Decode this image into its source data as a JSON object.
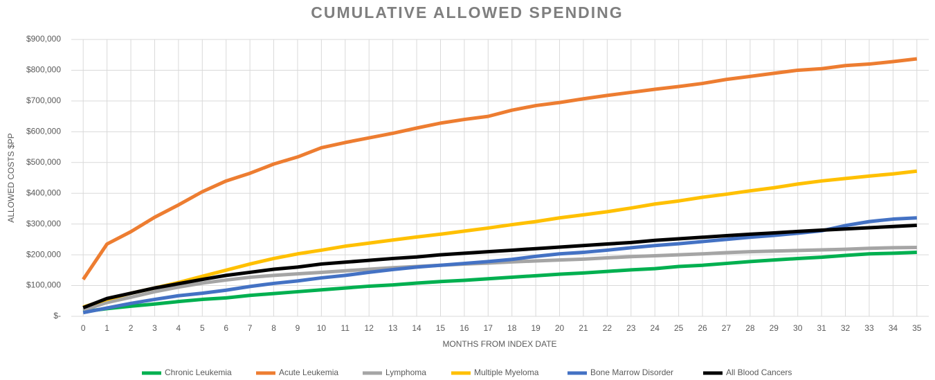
{
  "chart_data": {
    "type": "line",
    "title": "CUMULATIVE ALLOWED SPENDING",
    "x_label": "MONTHS FROM INDEX DATE",
    "y_label": "ALLOWED COSTS $PP",
    "categories": [
      "0",
      "1",
      "2",
      "3",
      "4",
      "5",
      "6",
      "7",
      "8",
      "9",
      "10",
      "11",
      "12",
      "13",
      "14",
      "15",
      "16",
      "17",
      "18",
      "19",
      "20",
      "21",
      "22",
      "23",
      "24",
      "25",
      "26",
      "27",
      "28",
      "29",
      "30",
      "31",
      "32",
      "33",
      "34",
      "35"
    ],
    "ylim": [
      0,
      900000
    ],
    "yticks": [
      {
        "value": 0,
        "label": "$-"
      },
      {
        "value": 100000,
        "label": "$100,000"
      },
      {
        "value": 200000,
        "label": "$200,000"
      },
      {
        "value": 300000,
        "label": "$300,000"
      },
      {
        "value": 400000,
        "label": "$400,000"
      },
      {
        "value": 500000,
        "label": "$500,000"
      },
      {
        "value": 600000,
        "label": "$600,000"
      },
      {
        "value": 700000,
        "label": "$700,000"
      },
      {
        "value": 800000,
        "label": "$800,000"
      },
      {
        "value": 900000,
        "label": "$900,000"
      }
    ],
    "grid": true,
    "legend": "bottom",
    "series": [
      {
        "name": "Chronic Leukemia",
        "color": "#00b050",
        "values": [
          15000,
          25000,
          33000,
          40000,
          48000,
          55000,
          60000,
          68000,
          74000,
          80000,
          86000,
          92000,
          98000,
          102000,
          108000,
          113000,
          117000,
          122000,
          127000,
          132000,
          137000,
          141000,
          146000,
          151000,
          155000,
          162000,
          166000,
          172000,
          178000,
          183000,
          188000,
          192000,
          198000,
          203000,
          205000,
          208000
        ]
      },
      {
        "name": "Acute Leukemia",
        "color": "#ed7d31",
        "values": [
          120000,
          235000,
          275000,
          322000,
          362000,
          405000,
          440000,
          465000,
          495000,
          518000,
          548000,
          565000,
          580000,
          595000,
          612000,
          628000,
          640000,
          650000,
          670000,
          685000,
          695000,
          707000,
          718000,
          728000,
          738000,
          747000,
          757000,
          770000,
          780000,
          790000,
          800000,
          805000,
          815000,
          820000,
          828000,
          837000
        ]
      },
      {
        "name": "Lymphoma",
        "color": "#a5a5a5",
        "values": [
          20000,
          45000,
          62000,
          80000,
          95000,
          108000,
          118000,
          127000,
          133000,
          138000,
          143000,
          148000,
          153000,
          158000,
          162000,
          166000,
          170000,
          173000,
          177000,
          180000,
          183000,
          186000,
          190000,
          194000,
          197000,
          200000,
          203000,
          207000,
          210000,
          212000,
          214000,
          216000,
          218000,
          221000,
          223000,
          224000
        ]
      },
      {
        "name": "Multiple Myeloma",
        "color": "#ffc000",
        "values": [
          30000,
          55000,
          75000,
          92000,
          110000,
          130000,
          150000,
          170000,
          188000,
          203000,
          215000,
          228000,
          238000,
          248000,
          258000,
          267000,
          277000,
          287000,
          298000,
          308000,
          320000,
          330000,
          340000,
          352000,
          365000,
          375000,
          387000,
          397000,
          408000,
          418000,
          430000,
          440000,
          448000,
          456000,
          463000,
          472000
        ]
      },
      {
        "name": "Bone Marrow Disorder",
        "color": "#4472c4",
        "values": [
          12000,
          27000,
          42000,
          55000,
          67000,
          75000,
          85000,
          97000,
          107000,
          115000,
          125000,
          133000,
          143000,
          152000,
          160000,
          166000,
          172000,
          178000,
          185000,
          195000,
          203000,
          208000,
          215000,
          223000,
          230000,
          236000,
          243000,
          250000,
          257000,
          263000,
          270000,
          278000,
          295000,
          308000,
          316000,
          320000
        ]
      },
      {
        "name": "All Blood Cancers",
        "color": "#000000",
        "values": [
          28000,
          58000,
          75000,
          92000,
          106000,
          120000,
          133000,
          143000,
          153000,
          160000,
          170000,
          176000,
          182000,
          188000,
          193000,
          200000,
          205000,
          210000,
          215000,
          220000,
          225000,
          230000,
          235000,
          240000,
          247000,
          252000,
          257000,
          262000,
          267000,
          271000,
          276000,
          280000,
          284000,
          288000,
          292000,
          296000
        ]
      }
    ]
  }
}
